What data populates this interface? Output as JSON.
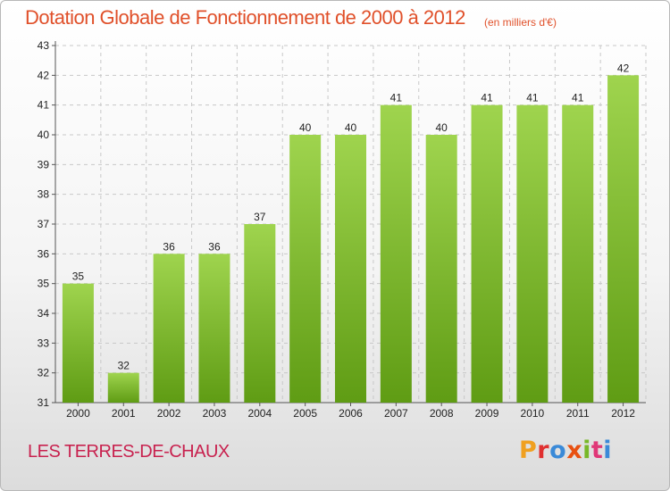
{
  "header": {
    "title": "Dotation Globale de Fonctionnement de 2000 à 2012",
    "unit": "(en milliers d'€)"
  },
  "footer": {
    "commune": "LES TERRES-DE-CHAUX",
    "brand": "Proxiti"
  },
  "colors": {
    "title": "#e0502a",
    "commune": "#c8224f",
    "bar_top": "#9fd44e",
    "bar_bottom": "#5f9c14",
    "brand_letters": [
      "#f0a020",
      "#e03030",
      "#3a8ad8",
      "#e85010",
      "#78b828",
      "#e03878",
      "#3a8ad8"
    ]
  },
  "chart_data": {
    "type": "bar",
    "categories": [
      "2000",
      "2001",
      "2002",
      "2003",
      "2004",
      "2005",
      "2006",
      "2007",
      "2008",
      "2009",
      "2010",
      "2011",
      "2012"
    ],
    "values": [
      35,
      32,
      36,
      36,
      37,
      40,
      40,
      41,
      40,
      41,
      41,
      41,
      42
    ],
    "data_labels": [
      "35",
      "32",
      "36",
      "36",
      "37",
      "40",
      "40",
      "41",
      "40",
      "41",
      "41",
      "41",
      "42"
    ],
    "yticks": [
      31,
      32,
      33,
      34,
      35,
      36,
      37,
      38,
      39,
      40,
      41,
      42,
      43
    ],
    "ylim": [
      31,
      43
    ],
    "grid": true
  }
}
